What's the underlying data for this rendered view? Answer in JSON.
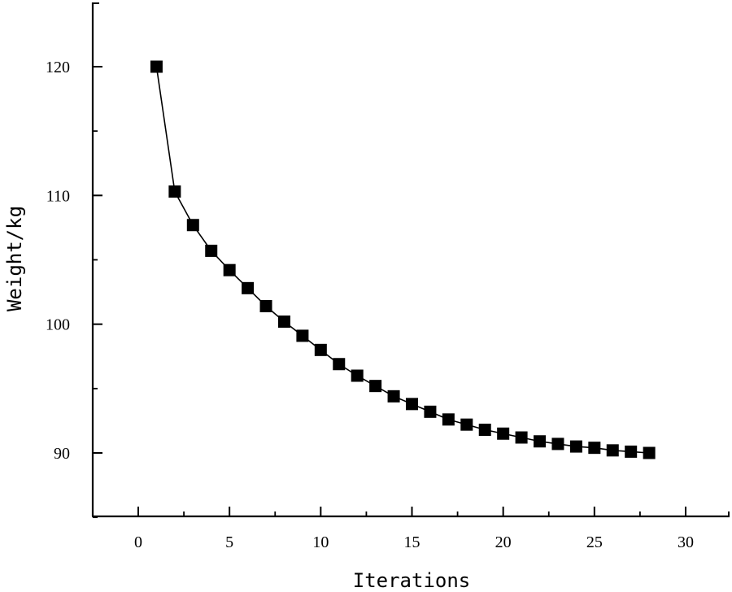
{
  "chart_data": {
    "type": "line",
    "title": "",
    "xlabel": "Iterations",
    "ylabel": "Weight/kg",
    "xlim": [
      -2.5,
      32.5
    ],
    "ylim": [
      85,
      125
    ],
    "xticks": [
      0,
      5,
      10,
      15,
      20,
      25,
      30
    ],
    "yticks": [
      90,
      100,
      110,
      120
    ],
    "grid": false,
    "legend": null,
    "marker": "square",
    "color": "#000000",
    "series": [
      {
        "name": "Weight",
        "x": [
          1,
          2,
          3,
          4,
          5,
          6,
          7,
          8,
          9,
          10,
          11,
          12,
          13,
          14,
          15,
          16,
          17,
          18,
          19,
          20,
          21,
          22,
          23,
          24,
          25,
          26,
          27,
          28
        ],
        "values": [
          120.0,
          110.3,
          107.7,
          105.7,
          104.2,
          102.8,
          101.4,
          100.2,
          99.1,
          98.0,
          96.9,
          96.0,
          95.2,
          94.4,
          93.8,
          93.2,
          92.6,
          92.2,
          91.8,
          91.5,
          91.2,
          90.9,
          90.7,
          90.5,
          90.4,
          90.2,
          90.1,
          90.0
        ]
      }
    ]
  }
}
